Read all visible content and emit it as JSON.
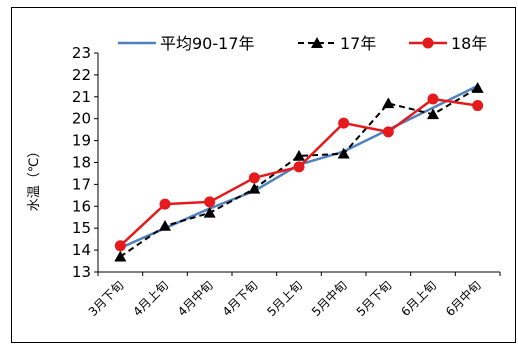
{
  "chart_data": {
    "type": "line",
    "categories": [
      "3月下旬",
      "4月上旬",
      "4月中旬",
      "4月下旬",
      "5月上旬",
      "5月中旬",
      "5月下旬",
      "6月上旬",
      "6月中旬"
    ],
    "ylabel": "水温（℃）",
    "ylim": [
      13,
      23
    ],
    "yticks": [
      13,
      14,
      15,
      16,
      17,
      18,
      19,
      20,
      21,
      22,
      23
    ],
    "grid": false,
    "legend_position": "top",
    "series": [
      {
        "name": "平均90-17年",
        "color": "#4f81bd",
        "style": "solid",
        "marker": "none",
        "values": [
          14.1,
          15.0,
          15.9,
          16.7,
          17.9,
          18.5,
          19.5,
          20.5,
          21.5
        ]
      },
      {
        "name": "17年",
        "color": "#000000",
        "style": "dashed",
        "marker": "triangle",
        "values": [
          13.7,
          15.1,
          15.7,
          16.8,
          18.3,
          18.4,
          20.7,
          20.2,
          21.4
        ]
      },
      {
        "name": "18年",
        "color": "#e41a1c",
        "style": "solid",
        "marker": "circle",
        "values": [
          14.2,
          16.1,
          16.2,
          17.3,
          17.8,
          19.8,
          19.4,
          20.9,
          20.6
        ]
      }
    ]
  }
}
